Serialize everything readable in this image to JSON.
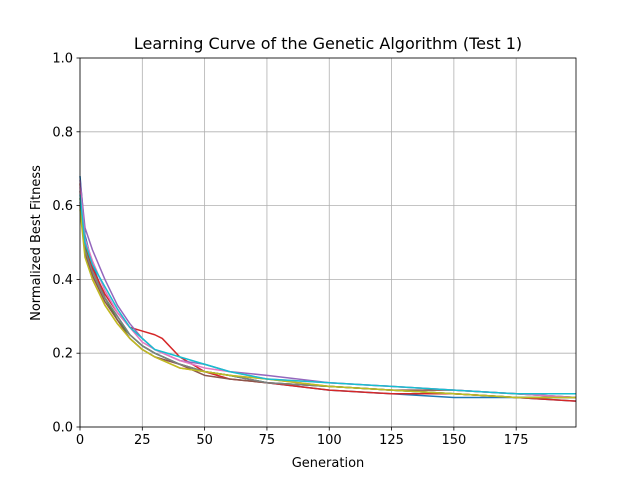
{
  "chart_data": {
    "type": "line",
    "title": "Learning Curve of the Genetic Algorithm (Test 1)",
    "xlabel": "Generation",
    "ylabel": "Normalized Best Fitness",
    "xlim": [
      0,
      199
    ],
    "ylim": [
      0.0,
      1.0
    ],
    "grid": true,
    "xticks": [
      0,
      25,
      50,
      75,
      100,
      125,
      150,
      175
    ],
    "yticks": [
      0.0,
      0.2,
      0.4,
      0.6,
      0.8,
      1.0
    ],
    "xtick_labels": [
      "0",
      "25",
      "50",
      "75",
      "100",
      "125",
      "150",
      "175"
    ],
    "ytick_labels": [
      "0.0",
      "0.2",
      "0.4",
      "0.6",
      "0.8",
      "1.0"
    ],
    "series": [
      {
        "color": "#1f77b4",
        "x": [
          0,
          2,
          5,
          10,
          15,
          20,
          25,
          30,
          40,
          50,
          60,
          75,
          100,
          125,
          150,
          175,
          199
        ],
        "y": [
          0.68,
          0.52,
          0.44,
          0.35,
          0.3,
          0.25,
          0.22,
          0.2,
          0.17,
          0.15,
          0.14,
          0.12,
          0.1,
          0.09,
          0.08,
          0.08,
          0.07
        ]
      },
      {
        "color": "#ff7f0e",
        "x": [
          0,
          2,
          5,
          10,
          15,
          20,
          25,
          30,
          40,
          50,
          60,
          75,
          100,
          125,
          150,
          175,
          199
        ],
        "y": [
          0.6,
          0.47,
          0.4,
          0.33,
          0.28,
          0.24,
          0.21,
          0.19,
          0.16,
          0.15,
          0.14,
          0.13,
          0.11,
          0.1,
          0.09,
          0.08,
          0.08
        ]
      },
      {
        "color": "#2ca02c",
        "x": [
          0,
          2,
          5,
          10,
          15,
          20,
          25,
          30,
          40,
          50,
          60,
          75,
          100,
          125,
          150,
          175,
          199
        ],
        "y": [
          0.62,
          0.49,
          0.42,
          0.35,
          0.29,
          0.25,
          0.22,
          0.2,
          0.17,
          0.15,
          0.14,
          0.12,
          0.11,
          0.1,
          0.09,
          0.08,
          0.08
        ]
      },
      {
        "color": "#d62728",
        "x": [
          0,
          2,
          5,
          10,
          15,
          20,
          25,
          30,
          33,
          40,
          50,
          60,
          75,
          100,
          125,
          150,
          175,
          199
        ],
        "y": [
          0.66,
          0.5,
          0.43,
          0.36,
          0.31,
          0.27,
          0.26,
          0.25,
          0.24,
          0.19,
          0.15,
          0.13,
          0.12,
          0.1,
          0.09,
          0.09,
          0.08,
          0.07
        ]
      },
      {
        "color": "#9467bd",
        "x": [
          0,
          2,
          5,
          10,
          15,
          20,
          25,
          30,
          40,
          50,
          60,
          75,
          100,
          125,
          150,
          175,
          199
        ],
        "y": [
          0.67,
          0.54,
          0.48,
          0.4,
          0.33,
          0.28,
          0.24,
          0.21,
          0.18,
          0.17,
          0.15,
          0.14,
          0.12,
          0.11,
          0.1,
          0.09,
          0.08
        ]
      },
      {
        "color": "#8c564b",
        "x": [
          0,
          2,
          5,
          10,
          15,
          20,
          25,
          30,
          40,
          50,
          60,
          75,
          100,
          125,
          150,
          175,
          199
        ],
        "y": [
          0.64,
          0.47,
          0.41,
          0.34,
          0.29,
          0.24,
          0.21,
          0.19,
          0.17,
          0.14,
          0.13,
          0.12,
          0.11,
          0.1,
          0.1,
          0.09,
          0.08
        ]
      },
      {
        "color": "#e377c2",
        "x": [
          0,
          2,
          5,
          10,
          15,
          20,
          25,
          30,
          40,
          50,
          60,
          75,
          100,
          125,
          150,
          175,
          199
        ],
        "y": [
          0.65,
          0.51,
          0.45,
          0.37,
          0.31,
          0.27,
          0.23,
          0.21,
          0.18,
          0.16,
          0.15,
          0.13,
          0.12,
          0.11,
          0.1,
          0.09,
          0.08
        ]
      },
      {
        "color": "#7f7f7f",
        "x": [
          0,
          2,
          5,
          10,
          15,
          20,
          25,
          30,
          40,
          50,
          60,
          75,
          100,
          125,
          150,
          175,
          199
        ],
        "y": [
          0.61,
          0.48,
          0.42,
          0.35,
          0.3,
          0.25,
          0.22,
          0.2,
          0.17,
          0.15,
          0.14,
          0.12,
          0.11,
          0.1,
          0.09,
          0.08,
          0.08
        ]
      },
      {
        "color": "#bcbd22",
        "x": [
          0,
          2,
          5,
          10,
          15,
          20,
          25,
          30,
          40,
          50,
          60,
          75,
          100,
          125,
          150,
          175,
          199
        ],
        "y": [
          0.59,
          0.46,
          0.4,
          0.33,
          0.28,
          0.24,
          0.21,
          0.19,
          0.16,
          0.15,
          0.14,
          0.13,
          0.11,
          0.1,
          0.09,
          0.08,
          0.08
        ]
      },
      {
        "color": "#17becf",
        "x": [
          0,
          2,
          5,
          10,
          15,
          20,
          25,
          30,
          40,
          50,
          60,
          75,
          100,
          125,
          150,
          175,
          199
        ],
        "y": [
          0.63,
          0.5,
          0.44,
          0.38,
          0.32,
          0.27,
          0.24,
          0.21,
          0.19,
          0.17,
          0.15,
          0.13,
          0.12,
          0.11,
          0.1,
          0.09,
          0.09
        ]
      }
    ]
  }
}
